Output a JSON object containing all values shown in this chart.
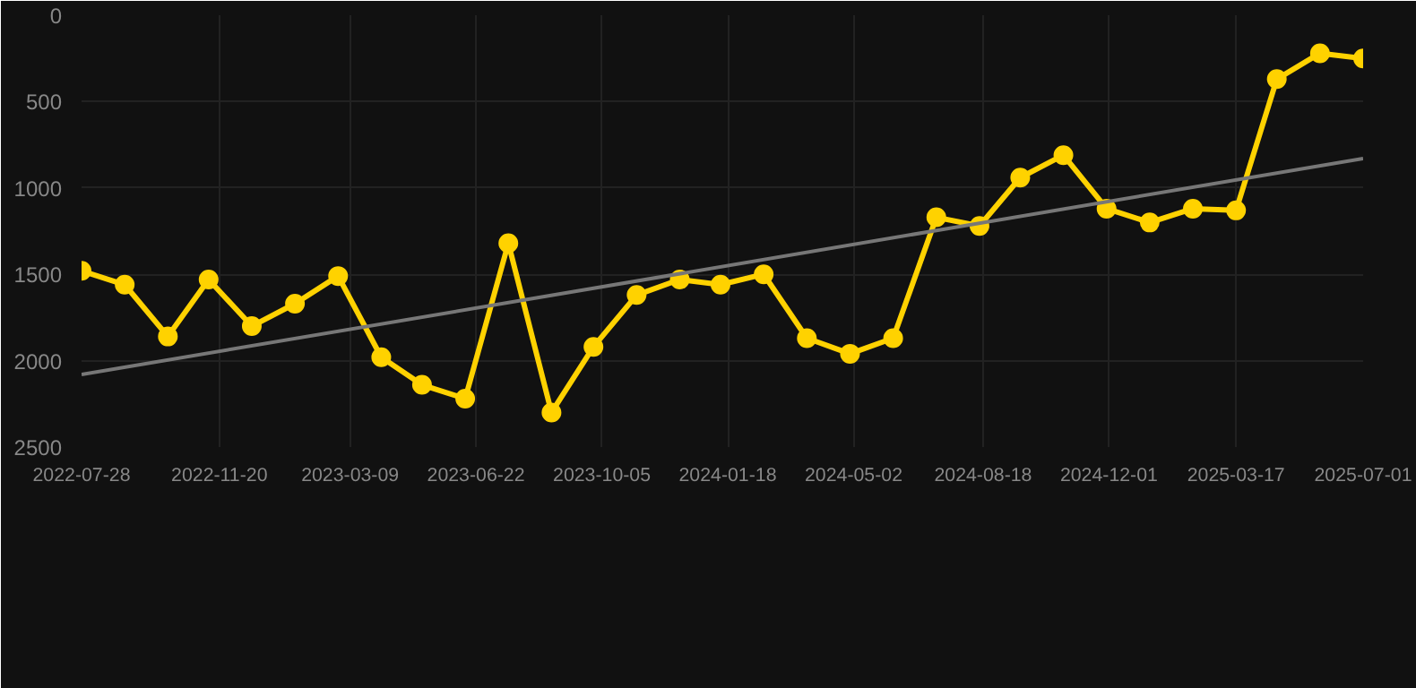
{
  "chart_data": {
    "type": "line",
    "x": [
      "2022-07-28",
      "2022-09-02",
      "2022-10-08",
      "2022-11-11",
      "2022-12-17",
      "2023-01-22",
      "2023-02-27",
      "2023-04-04",
      "2023-05-08",
      "2023-06-13",
      "2023-07-19",
      "2023-08-24",
      "2023-09-28",
      "2023-11-03",
      "2023-12-09",
      "2024-01-12",
      "2024-02-17",
      "2024-03-24",
      "2024-04-29",
      "2024-06-04",
      "2024-07-10",
      "2024-08-15",
      "2024-09-18",
      "2024-10-24",
      "2024-11-29",
      "2025-01-04",
      "2025-02-09",
      "2025-03-17",
      "2025-04-20",
      "2025-05-26",
      "2025-07-01"
    ],
    "series": [
      {
        "color": "#ffd200",
        "marker": "circle",
        "values": [
          1480,
          1560,
          1860,
          1530,
          1800,
          1670,
          1510,
          1980,
          2140,
          2220,
          1320,
          2300,
          1920,
          1620,
          1530,
          1560,
          1500,
          1870,
          1960,
          1870,
          1170,
          1220,
          940,
          810,
          1120,
          1200,
          1120,
          1130,
          370,
          220,
          250
        ]
      },
      {
        "type": "line",
        "color": "#777777",
        "marker": "none",
        "x": [
          "2022-07-28",
          "2025-07-01"
        ],
        "values": [
          2080,
          830
        ]
      }
    ],
    "ylim": [
      2500,
      0
    ],
    "yticks": [
      0,
      500,
      1000,
      1500,
      2000,
      2500
    ],
    "xlim": [
      "2022-07-28",
      "2025-07-01"
    ],
    "xticks": [
      "2022-07-28",
      "2022-11-20",
      "2023-03-09",
      "2023-06-22",
      "2023-10-05",
      "2024-01-18",
      "2024-05-02",
      "2024-08-18",
      "2024-12-01",
      "2025-03-17",
      "2025-07-01"
    ],
    "grid": true
  }
}
